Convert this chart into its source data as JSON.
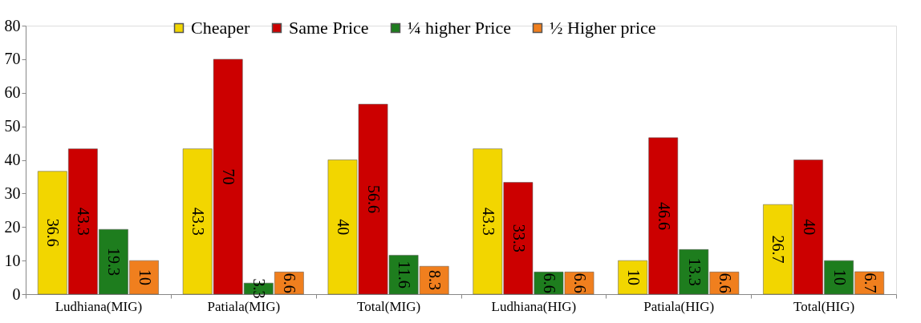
{
  "chart_data": {
    "type": "bar",
    "categories": [
      "Ludhiana(MIG)",
      "Patiala(MIG)",
      "Total(MIG)",
      "Ludhiana(HIG)",
      "Patiala(HIG)",
      "Total(HIG)"
    ],
    "series": [
      {
        "name": "Cheaper",
        "color": "#f2d600",
        "values": [
          36.6,
          43.3,
          40,
          43.3,
          10,
          26.7
        ]
      },
      {
        "name": "Same Price",
        "color": "#cc0000",
        "values": [
          43.3,
          70,
          56.6,
          33.3,
          46.6,
          40
        ]
      },
      {
        "name": "¼ higher Price",
        "color": "#1e7d1e",
        "values": [
          19.3,
          3.3,
          11.6,
          6.6,
          13.3,
          10
        ]
      },
      {
        "name": "½ Higher  price",
        "color": "#f07f1e",
        "values": [
          10,
          6.6,
          8.3,
          6.6,
          6.6,
          6.7
        ]
      }
    ],
    "ylim": [
      0,
      80
    ],
    "yticks": [
      0,
      10,
      20,
      30,
      40,
      50,
      60,
      70,
      80
    ],
    "data_labels": true,
    "legend": "top",
    "grid": false
  }
}
